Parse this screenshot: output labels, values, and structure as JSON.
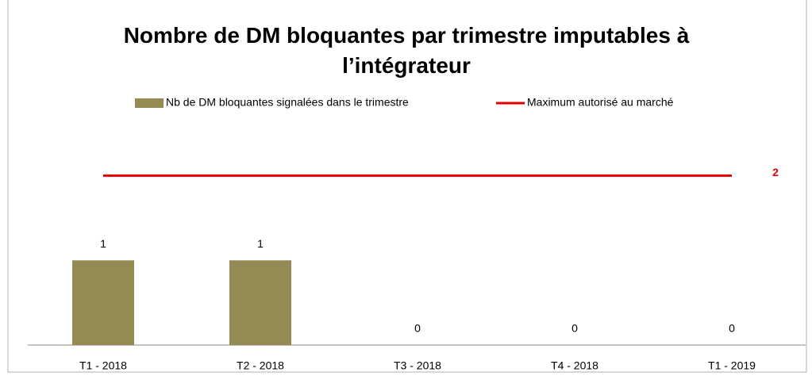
{
  "chart_data": {
    "type": "bar-line",
    "title": "Nombre de DM bloquantes par trimestre imputables à l’intégrateur",
    "categories": [
      "T1 - 2018",
      "T2 - 2018",
      "T3 - 2018",
      "T4 - 2018",
      "T1 - 2019"
    ],
    "series": [
      {
        "name": "Nb de DM bloquantes signalées dans le trimestre",
        "type": "bar",
        "color": "#948a54",
        "values": [
          1,
          1,
          0,
          0,
          0
        ]
      },
      {
        "name": "Maximum autorisé au marché",
        "type": "line",
        "color": "#e00000",
        "values": [
          2,
          2,
          2,
          2,
          2
        ]
      }
    ],
    "ylim": [
      0,
      2.5
    ]
  }
}
